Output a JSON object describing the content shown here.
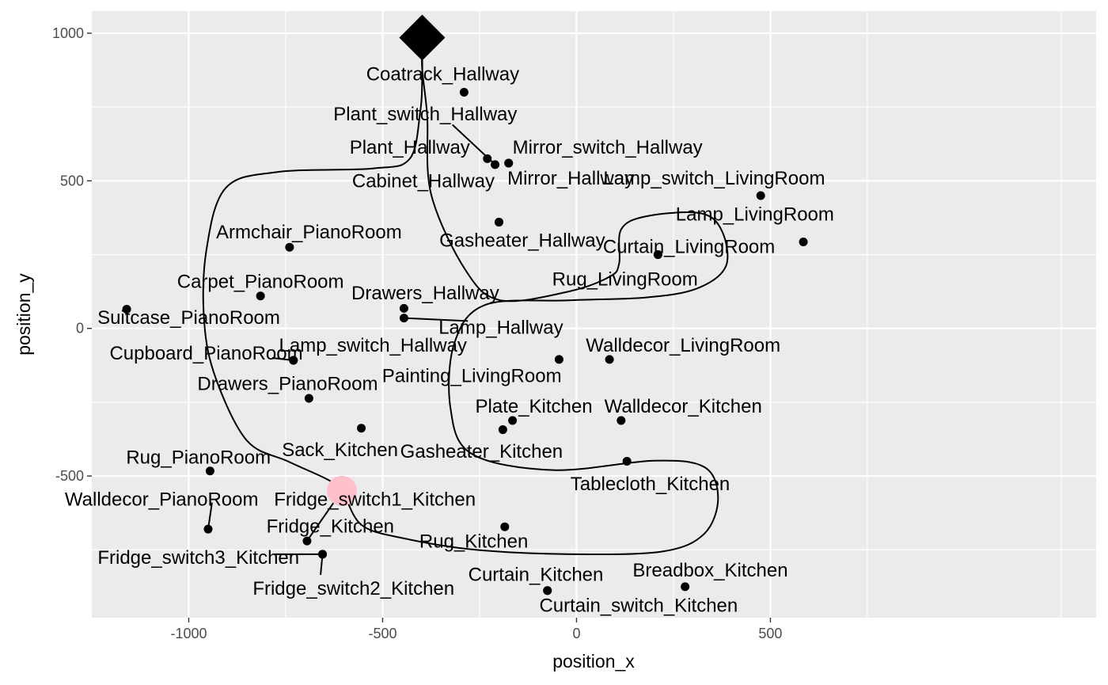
{
  "chart_data": {
    "type": "scatter",
    "xlabel": "position_x",
    "ylabel": "position_y",
    "xlim": [
      -1250,
      1340
    ],
    "ylim": [
      -980,
      1075
    ],
    "x_ticks": [
      {
        "value": -1000,
        "label": "-1000"
      },
      {
        "value": -500,
        "label": "-500"
      },
      {
        "value": 0,
        "label": "0"
      },
      {
        "value": 500,
        "label": "500"
      }
    ],
    "y_ticks": [
      {
        "value": -500,
        "label": "-500"
      },
      {
        "value": 0,
        "label": "0"
      },
      {
        "value": 500,
        "label": "500"
      },
      {
        "value": 1000,
        "label": "1000"
      }
    ],
    "panel_background": "#ebebeb",
    "grid_color": "#ffffff",
    "points": [
      {
        "label": "Coatrack_Hallway",
        "x": -290,
        "y": 800
      },
      {
        "label": "Plant_switch_Hallway",
        "x": -210,
        "y": 555
      },
      {
        "label": "Plant_Hallway",
        "x": -230,
        "y": 575
      },
      {
        "label": "Mirror_switch_Hallway",
        "x": -175,
        "y": 560
      },
      {
        "label": "Mirror_Hallway",
        "x": -175,
        "y": 560
      },
      {
        "label": "Cabinet_Hallway",
        "x": -200,
        "y": 360
      },
      {
        "label": "Gasheater_Hallway",
        "x": -200,
        "y": 360
      },
      {
        "label": "Lamp_switch_LivingRoom",
        "x": 475,
        "y": 450
      },
      {
        "label": "Lamp_LivingRoom",
        "x": 585,
        "y": 293
      },
      {
        "label": "Curtain_LivingRoom",
        "x": 210,
        "y": 250
      },
      {
        "label": "Rug_LivingRoom",
        "x": 210,
        "y": 250
      },
      {
        "label": "Armchair_PianoRoom",
        "x": -740,
        "y": 275
      },
      {
        "label": "Carpet_PianoRoom",
        "x": -815,
        "y": 110
      },
      {
        "label": "Suitcase_PianoRoom",
        "x": -1160,
        "y": 65
      },
      {
        "label": "Drawers_Hallway",
        "x": -445,
        "y": 68
      },
      {
        "label": "Lamp_Hallway",
        "x": -445,
        "y": 35
      },
      {
        "label": "Lamp_switch_Hallway",
        "x": -730,
        "y": -108
      },
      {
        "label": "Cupboard_PianoRoom",
        "x": -730,
        "y": -108
      },
      {
        "label": "Walldecor_LivingRoom",
        "x": 85,
        "y": -105
      },
      {
        "label": "Painting_LivingRoom",
        "x": -45,
        "y": -105
      },
      {
        "label": "Drawers_PianoRoom",
        "x": -690,
        "y": -237
      },
      {
        "label": "Plate_Kitchen",
        "x": -165,
        "y": -312
      },
      {
        "label": "Walldecor_Kitchen",
        "x": 115,
        "y": -312
      },
      {
        "label": "Gasheater_Kitchen",
        "x": -190,
        "y": -343
      },
      {
        "label": "Sack_Kitchen",
        "x": -555,
        "y": -338
      },
      {
        "label": "Tablecloth_Kitchen",
        "x": 130,
        "y": -450
      },
      {
        "label": "Rug_PianoRoom",
        "x": -945,
        "y": -483
      },
      {
        "label": "Fridge_switch1_Kitchen",
        "x": -605,
        "y": -550
      },
      {
        "label": "Walldecor_PianoRoom",
        "x": -950,
        "y": -680
      },
      {
        "label": "Rug_Kitchen",
        "x": -185,
        "y": -672
      },
      {
        "label": "Fridge_Kitchen",
        "x": -695,
        "y": -720
      },
      {
        "label": "Fridge_switch3_Kitchen",
        "x": -655,
        "y": -765
      },
      {
        "label": "Fridge_switch2_Kitchen",
        "x": -655,
        "y": -765
      },
      {
        "label": "Curtain_Kitchen",
        "x": -75,
        "y": -888
      },
      {
        "label": "Curtain_switch_Kitchen",
        "x": -75,
        "y": -888
      },
      {
        "label": "Breadbox_Kitchen",
        "x": 280,
        "y": -875
      }
    ],
    "start_marker": {
      "shape": "diamond",
      "color": "#000000",
      "x": -398,
      "y": 985
    },
    "end_marker": {
      "shape": "circle",
      "color": "#ffc0cb",
      "x": -605,
      "y": -550
    },
    "path": [
      [
        -398,
        985
      ],
      [
        -398,
        940
      ],
      [
        -398,
        840
      ],
      [
        -403,
        735
      ],
      [
        -430,
        575
      ],
      [
        -525,
        542
      ],
      [
        -770,
        530
      ],
      [
        -905,
        475
      ],
      [
        -955,
        260
      ],
      [
        -960,
        20
      ],
      [
        -930,
        -170
      ],
      [
        -850,
        -380
      ],
      [
        -745,
        -450
      ],
      [
        -645,
        -510
      ],
      [
        -605,
        -550
      ],
      [
        -555,
        -665
      ],
      [
        -450,
        -710
      ],
      [
        -260,
        -750
      ],
      [
        0,
        -765
      ],
      [
        225,
        -755
      ],
      [
        330,
        -695
      ],
      [
        365,
        -575
      ],
      [
        330,
        -470
      ],
      [
        200,
        -448
      ],
      [
        -60,
        -480
      ],
      [
        -270,
        -425
      ],
      [
        -325,
        -270
      ],
      [
        -315,
        -50
      ],
      [
        -235,
        80
      ],
      [
        -20,
        95
      ],
      [
        180,
        105
      ],
      [
        310,
        135
      ],
      [
        385,
        210
      ],
      [
        375,
        330
      ],
      [
        320,
        390
      ],
      [
        180,
        380
      ],
      [
        115,
        335
      ],
      [
        110,
        220
      ],
      [
        85,
        175
      ],
      [
        -20,
        125
      ],
      [
        -195,
        95
      ],
      [
        -285,
        195
      ],
      [
        -375,
        455
      ],
      [
        -385,
        720
      ],
      [
        -398,
        880
      ],
      [
        -398,
        985
      ]
    ],
    "leader_segments": [
      {
        "from": [
          -320,
          690
        ],
        "to": [
          -210,
          555
        ]
      },
      {
        "from": [
          -660,
          -835
        ],
        "to": [
          -655,
          -765
        ]
      },
      {
        "from": [
          -940,
          -590
        ],
        "to": [
          -950,
          -680
        ]
      },
      {
        "from": [
          -785,
          -100
        ],
        "to": [
          -730,
          -108
        ]
      },
      {
        "from": [
          -445,
          35
        ],
        "to": [
          -280,
          25
        ]
      },
      {
        "from": [
          -780,
          -765
        ],
        "to": [
          -655,
          -765
        ]
      },
      {
        "from": [
          -695,
          -720
        ],
        "to": [
          -605,
          -550
        ]
      }
    ],
    "labels": [
      {
        "text": "Coatrack_Hallway",
        "x": -345,
        "y": 860
      },
      {
        "text": "Plant_switch_Hallway",
        "x": -390,
        "y": 725
      },
      {
        "text": "Plant_Hallway",
        "x": -430,
        "y": 612
      },
      {
        "text": "Mirror_switch_Hallway",
        "x": 80,
        "y": 612
      },
      {
        "text": "Cabinet_Hallway",
        "x": -395,
        "y": 498
      },
      {
        "text": "Mirror_Hallway",
        "x": -15,
        "y": 508
      },
      {
        "text": "Lamp_switch_LivingRoom",
        "x": 355,
        "y": 508
      },
      {
        "text": "Lamp_LivingRoom",
        "x": 460,
        "y": 385
      },
      {
        "text": "Gasheater_Hallway",
        "x": -140,
        "y": 297
      },
      {
        "text": "Curtain_LivingRoom",
        "x": 290,
        "y": 275
      },
      {
        "text": "Rug_LivingRoom",
        "x": 125,
        "y": 165
      },
      {
        "text": "Armchair_PianoRoom",
        "x": -690,
        "y": 325
      },
      {
        "text": "Carpet_PianoRoom",
        "x": -815,
        "y": 158
      },
      {
        "text": "Drawers_Hallway",
        "x": -390,
        "y": 118
      },
      {
        "text": "Suitcase_PianoRoom",
        "x": -1000,
        "y": 35
      },
      {
        "text": "Lamp_Hallway",
        "x": -195,
        "y": 2
      },
      {
        "text": "Lamp_switch_Hallway",
        "x": -525,
        "y": -58
      },
      {
        "text": "Cupboard_PianoRoom",
        "x": -955,
        "y": -85
      },
      {
        "text": "Walldecor_LivingRoom",
        "x": 275,
        "y": -58
      },
      {
        "text": "Painting_LivingRoom",
        "x": -270,
        "y": -162
      },
      {
        "text": "Drawers_PianoRoom",
        "x": -745,
        "y": -188
      },
      {
        "text": "Plate_Kitchen",
        "x": -110,
        "y": -265
      },
      {
        "text": "Walldecor_Kitchen",
        "x": 275,
        "y": -265
      },
      {
        "text": "Sack_Kitchen",
        "x": -610,
        "y": -412
      },
      {
        "text": "Gasheater_Kitchen",
        "x": -245,
        "y": -418
      },
      {
        "text": "Rug_PianoRoom",
        "x": -975,
        "y": -438
      },
      {
        "text": "Tablecloth_Kitchen",
        "x": 190,
        "y": -528
      },
      {
        "text": "Walldecor_PianoRoom",
        "x": -1070,
        "y": -580
      },
      {
        "text": "Fridge_switch1_Kitchen",
        "x": -520,
        "y": -580
      },
      {
        "text": "Fridge_Kitchen",
        "x": -635,
        "y": -672
      },
      {
        "text": "Rug_Kitchen",
        "x": -265,
        "y": -722
      },
      {
        "text": "Fridge_switch3_Kitchen",
        "x": -975,
        "y": -778
      },
      {
        "text": "Breadbox_Kitchen",
        "x": 345,
        "y": -820
      },
      {
        "text": "Curtain_Kitchen",
        "x": -105,
        "y": -835
      },
      {
        "text": "Fridge_switch2_Kitchen",
        "x": -575,
        "y": -882
      },
      {
        "text": "Curtain_switch_Kitchen",
        "x": 160,
        "y": -940
      }
    ]
  }
}
